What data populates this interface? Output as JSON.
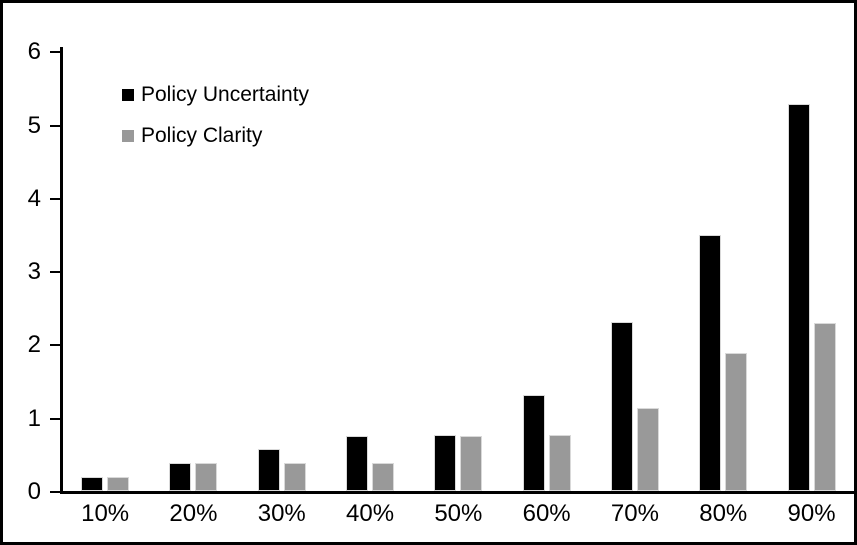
{
  "chart_data": {
    "type": "bar",
    "title": "",
    "xlabel": "",
    "ylabel": "",
    "categories": [
      "10%",
      "20%",
      "30%",
      "40%",
      "50%",
      "60%",
      "70%",
      "80%",
      "90%"
    ],
    "series": [
      {
        "name": "Policy Uncertainty",
        "color": "#000000",
        "values": [
          0.2,
          0.4,
          0.58,
          0.77,
          0.78,
          1.33,
          2.32,
          3.5,
          5.3
        ]
      },
      {
        "name": "Policy Clarity",
        "color": "#999999",
        "values": [
          0.2,
          0.39,
          0.39,
          0.39,
          0.77,
          0.78,
          1.15,
          1.9,
          2.3
        ]
      }
    ],
    "ylim": [
      0,
      6
    ],
    "ytick_interval": 1,
    "ytick_labels": [
      "0",
      "1",
      "2",
      "3",
      "4",
      "5",
      "6"
    ],
    "grid": "off",
    "legend_position": "inside-top-left"
  },
  "colors": {
    "bar_series_1": "#000000",
    "bar_series_2": "#999999",
    "bar_outline": "#d9d9d9",
    "axis": "#000000",
    "frame_border": "#000000",
    "background": "#ffffff"
  }
}
